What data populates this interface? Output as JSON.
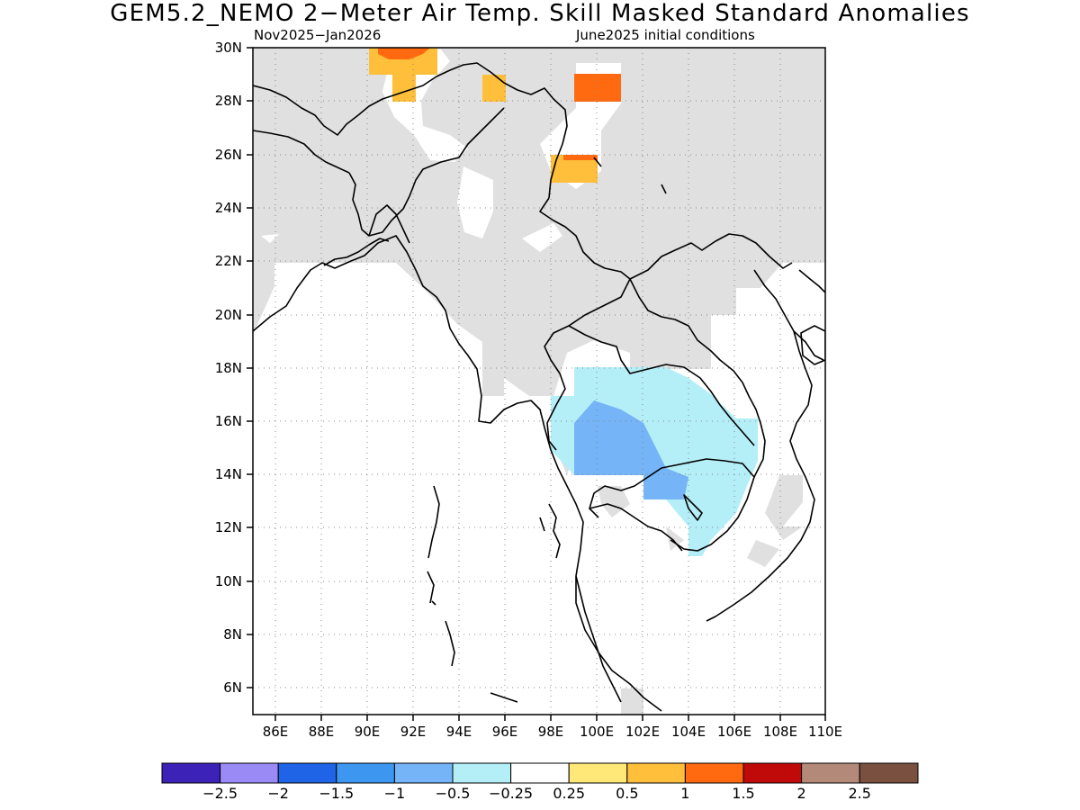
{
  "title": "GEM5.2_NEMO 2−Meter Air Temp. Skill Masked Standard Anomalies",
  "subtitle_left": "Nov2025−Jan2026",
  "subtitle_right": "June2025 initial conditions",
  "map": {
    "lon_range": [
      85,
      110
    ],
    "lat_range": [
      5,
      30
    ],
    "lat_labels": [
      "30N",
      "28N",
      "26N",
      "24N",
      "22N",
      "20N",
      "18N",
      "16N",
      "14N",
      "12N",
      "10N",
      "8N",
      "6N"
    ],
    "lon_labels": [
      "86E",
      "88E",
      "90E",
      "92E",
      "94E",
      "96E",
      "98E",
      "100E",
      "102E",
      "104E",
      "106E",
      "108E",
      "110E"
    ],
    "colors": {
      "masked": "#e0e0e0",
      "neg_0_5_to_0_25": "#b4eef7",
      "neg_1_to_0_5": "#74b4f7",
      "pos_0_25_to_0_5": "#ffe878",
      "pos_0_5_to_1": "#ffbf3b",
      "pos_1_to_1_5": "#ff6a10"
    }
  },
  "colorbar": {
    "colors": [
      "#3d22b8",
      "#9a8af5",
      "#1f64e6",
      "#3d96f0",
      "#74b4f7",
      "#b4eef7",
      "#ffffff",
      "#ffe878",
      "#ffbf3b",
      "#ff6a10",
      "#c00a0a",
      "#b38a7a",
      "#7a5040"
    ],
    "labels": [
      "−2.5",
      "−2",
      "−1.5",
      "−1",
      "−0.5",
      "−0.25",
      "0.25",
      "0.5",
      "1",
      "1.5",
      "2",
      "2.5"
    ]
  }
}
